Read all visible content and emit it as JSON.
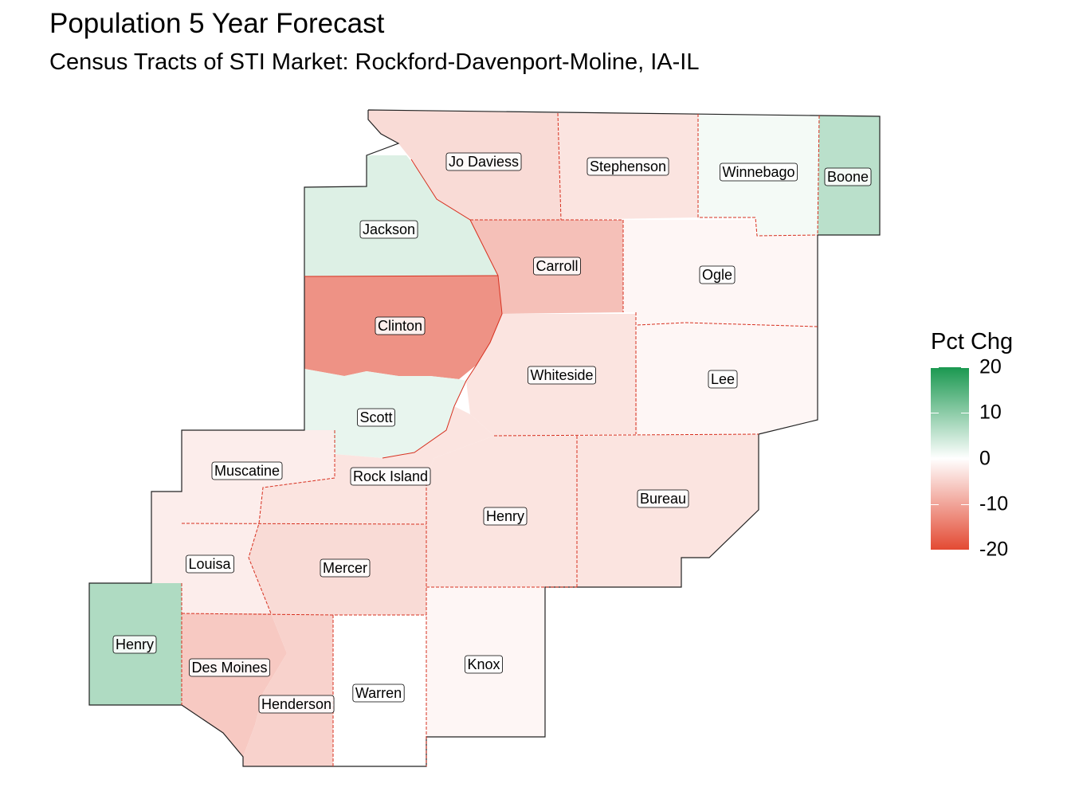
{
  "title": "Population 5 Year Forecast",
  "subtitle": "Census Tracts of STI Market: Rockford-Davenport-Moline, IA-IL",
  "legend": {
    "title": "Pct Chg",
    "ticks": [
      {
        "value": 20,
        "label": "20"
      },
      {
        "value": 10,
        "label": "10"
      },
      {
        "value": 0,
        "label": "0"
      },
      {
        "value": -10,
        "label": "-10"
      },
      {
        "value": -20,
        "label": "-20"
      }
    ],
    "scale_min": -20,
    "scale_max": 20,
    "color_high": "#1a9850",
    "color_mid": "#ffffff",
    "color_low": "#e34a33"
  },
  "colors": {
    "border": "#222222",
    "county_line": "#d7301f"
  },
  "counties": [
    {
      "id": "jo-daviess",
      "label": "Jo Daviess",
      "pct_chg": -4
    },
    {
      "id": "stephenson",
      "label": "Stephenson",
      "pct_chg": -3
    },
    {
      "id": "winnebago",
      "label": "Winnebago",
      "pct_chg": 1
    },
    {
      "id": "boone",
      "label": "Boone",
      "pct_chg": 6
    },
    {
      "id": "jackson",
      "label": "Jackson",
      "pct_chg": 3
    },
    {
      "id": "carroll",
      "label": "Carroll",
      "pct_chg": -7
    },
    {
      "id": "ogle",
      "label": "Ogle",
      "pct_chg": -1
    },
    {
      "id": "clinton",
      "label": "Clinton",
      "pct_chg": -12
    },
    {
      "id": "whiteside",
      "label": "Whiteside",
      "pct_chg": -3
    },
    {
      "id": "lee",
      "label": "Lee",
      "pct_chg": -1
    },
    {
      "id": "scott",
      "label": "Scott",
      "pct_chg": 2
    },
    {
      "id": "muscatine",
      "label": "Muscatine",
      "pct_chg": -2
    },
    {
      "id": "rock-island",
      "label": "Rock Island",
      "pct_chg": -3
    },
    {
      "id": "henry-il",
      "label": "Henry",
      "pct_chg": -3
    },
    {
      "id": "bureau",
      "label": "Bureau",
      "pct_chg": -3
    },
    {
      "id": "louisa",
      "label": "Louisa",
      "pct_chg": -2
    },
    {
      "id": "mercer",
      "label": "Mercer",
      "pct_chg": -4
    },
    {
      "id": "henry-ia",
      "label": "Henry",
      "pct_chg": 7
    },
    {
      "id": "des-moines",
      "label": "Des Moines",
      "pct_chg": -6
    },
    {
      "id": "henderson",
      "label": "Henderson",
      "pct_chg": -5
    },
    {
      "id": "warren",
      "label": "Warren",
      "pct_chg": 0
    },
    {
      "id": "knox",
      "label": "Knox",
      "pct_chg": -1
    }
  ]
}
